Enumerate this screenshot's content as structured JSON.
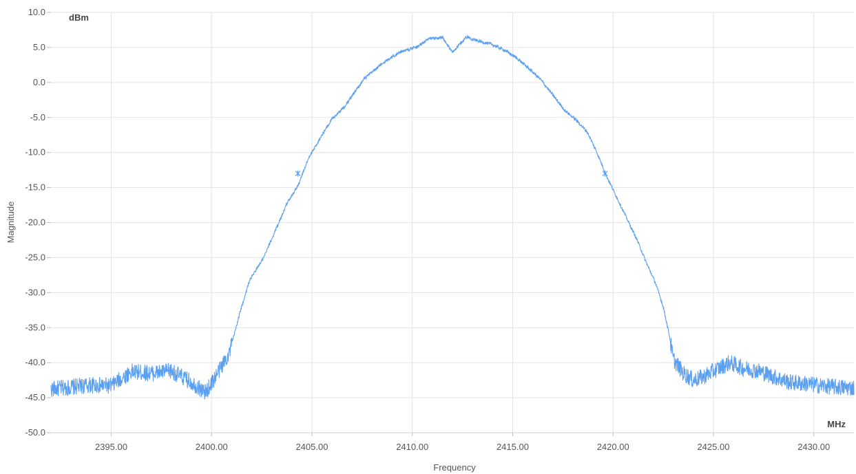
{
  "chart_data": {
    "type": "line",
    "xlabel": "Frequency",
    "ylabel": "Magnitude",
    "x_unit": "MHz",
    "y_unit": "dBm",
    "xlim": [
      2392.0,
      2432.0
    ],
    "ylim": [
      -50,
      10
    ],
    "x_ticks": [
      2395,
      2400,
      2405,
      2410,
      2415,
      2420,
      2425,
      2430
    ],
    "x_tick_labels": [
      "2395.00",
      "2400.00",
      "2405.00",
      "2410.00",
      "2415.00",
      "2420.00",
      "2425.00",
      "2430.00"
    ],
    "y_ticks": [
      10,
      5,
      0,
      -5,
      -10,
      -15,
      -20,
      -25,
      -30,
      -35,
      -40,
      -45,
      -50
    ],
    "y_tick_labels": [
      "10.0",
      "5.0",
      "0.0",
      "-5.0",
      "-10.0",
      "-15.0",
      "-20.0",
      "-25.0",
      "-30.0",
      "-35.0",
      "-40.0",
      "-45.0",
      "-50.0"
    ],
    "grid": true,
    "line_color": "#5b9ff0",
    "series": [
      {
        "points": [
          [
            2392.0,
            -43.8
          ],
          [
            2393.0,
            -43.5
          ],
          [
            2394.0,
            -43.2
          ],
          [
            2395.0,
            -43.3
          ],
          [
            2396.0,
            -41.3
          ],
          [
            2397.0,
            -41.5
          ],
          [
            2398.0,
            -41.2
          ],
          [
            2399.0,
            -42.8
          ],
          [
            2399.7,
            -44.3
          ],
          [
            2400.3,
            -41.5
          ],
          [
            2400.9,
            -38.5
          ],
          [
            2401.4,
            -33.0
          ],
          [
            2401.9,
            -28.2
          ],
          [
            2402.6,
            -25.0
          ],
          [
            2403.2,
            -21.0
          ],
          [
            2403.8,
            -17.0
          ],
          [
            2404.3,
            -14.8
          ],
          [
            2404.8,
            -11.0
          ],
          [
            2405.5,
            -7.5
          ],
          [
            2406.0,
            -5.2
          ],
          [
            2406.6,
            -3.5
          ],
          [
            2407.1,
            -1.5
          ],
          [
            2407.6,
            0.5
          ],
          [
            2408.3,
            2.2
          ],
          [
            2408.9,
            3.5
          ],
          [
            2409.5,
            4.5
          ],
          [
            2410.2,
            5.0
          ],
          [
            2410.8,
            6.2
          ],
          [
            2411.5,
            6.4
          ],
          [
            2412.0,
            4.3
          ],
          [
            2412.7,
            6.5
          ],
          [
            2413.3,
            5.9
          ],
          [
            2414.0,
            5.4
          ],
          [
            2414.6,
            4.6
          ],
          [
            2415.2,
            3.5
          ],
          [
            2415.8,
            2.0
          ],
          [
            2416.4,
            0.4
          ],
          [
            2417.0,
            -1.8
          ],
          [
            2417.6,
            -4.0
          ],
          [
            2418.1,
            -5.2
          ],
          [
            2418.7,
            -7.0
          ],
          [
            2419.2,
            -10.0
          ],
          [
            2419.7,
            -13.5
          ],
          [
            2420.2,
            -16.5
          ],
          [
            2420.7,
            -19.5
          ],
          [
            2421.2,
            -22.5
          ],
          [
            2421.7,
            -26.0
          ],
          [
            2422.1,
            -28.5
          ],
          [
            2422.5,
            -32.0
          ],
          [
            2422.8,
            -36.0
          ],
          [
            2423.0,
            -39.5
          ],
          [
            2423.5,
            -41.5
          ],
          [
            2424.0,
            -42.5
          ],
          [
            2424.5,
            -42.0
          ],
          [
            2425.0,
            -41.2
          ],
          [
            2425.8,
            -40.0
          ],
          [
            2426.5,
            -40.8
          ],
          [
            2427.3,
            -41.2
          ],
          [
            2428.0,
            -42.0
          ],
          [
            2428.8,
            -42.8
          ],
          [
            2429.6,
            -43.0
          ],
          [
            2430.4,
            -43.3
          ],
          [
            2431.2,
            -43.5
          ],
          [
            2432.0,
            -43.6
          ]
        ],
        "markers": [
          [
            2404.3,
            -13.0
          ],
          [
            2419.6,
            -13.0
          ]
        ]
      }
    ]
  }
}
